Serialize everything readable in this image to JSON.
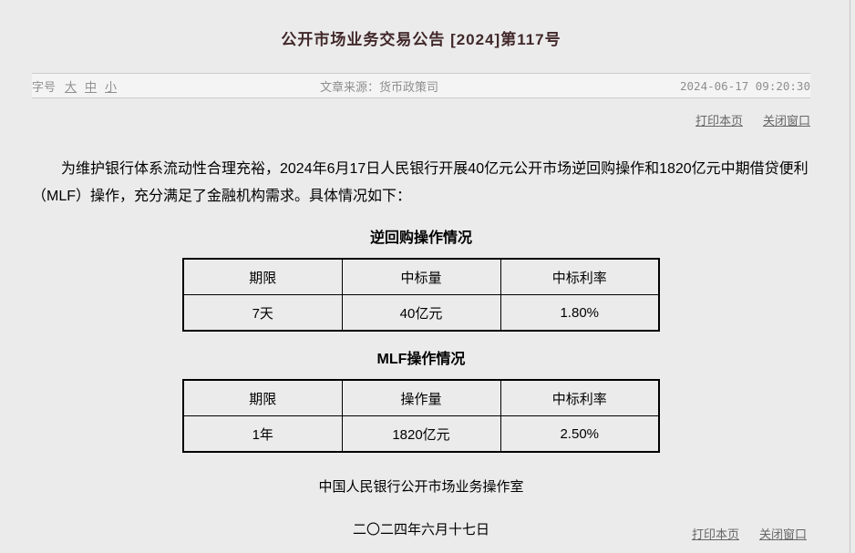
{
  "article": {
    "title": "公开市场业务交易公告 [2024]第117号",
    "meta": {
      "font_size_label": "字号",
      "font_sizes": {
        "large": "大",
        "medium": "中",
        "small": "小"
      },
      "source": "文章来源：货币政策司",
      "datetime": "2024-06-17 09:20:30"
    },
    "actions": {
      "print_label": "打印本页",
      "close_label": "关闭窗口"
    },
    "body_paragraph": "为维护银行体系流动性合理充裕，2024年6月17日人民银行开展40亿元公开市场逆回购操作和1820亿元中期借贷便利（MLF）操作，充分满足了金融机构需求。具体情况如下：",
    "tables": [
      {
        "title": "逆回购操作情况",
        "headers": [
          "期限",
          "中标量",
          "中标利率"
        ],
        "rows": [
          [
            "7天",
            "40亿元",
            "1.80%"
          ]
        ]
      },
      {
        "title": "MLF操作情况",
        "headers": [
          "期限",
          "操作量",
          "中标利率"
        ],
        "rows": [
          [
            "1年",
            "1820亿元",
            "2.50%"
          ]
        ]
      }
    ],
    "signature": "中国人民银行公开市场业务操作室",
    "date_cn": "二〇二四年六月十七日"
  },
  "colors": {
    "page_background": "#ebebeb",
    "meta_bar_background": "#f4f4f4",
    "meta_bar_border": "#cccccc",
    "title_text": "#42282a",
    "muted_text": "#8f8f8f",
    "link_text": "#666666",
    "table_border": "#000000"
  }
}
